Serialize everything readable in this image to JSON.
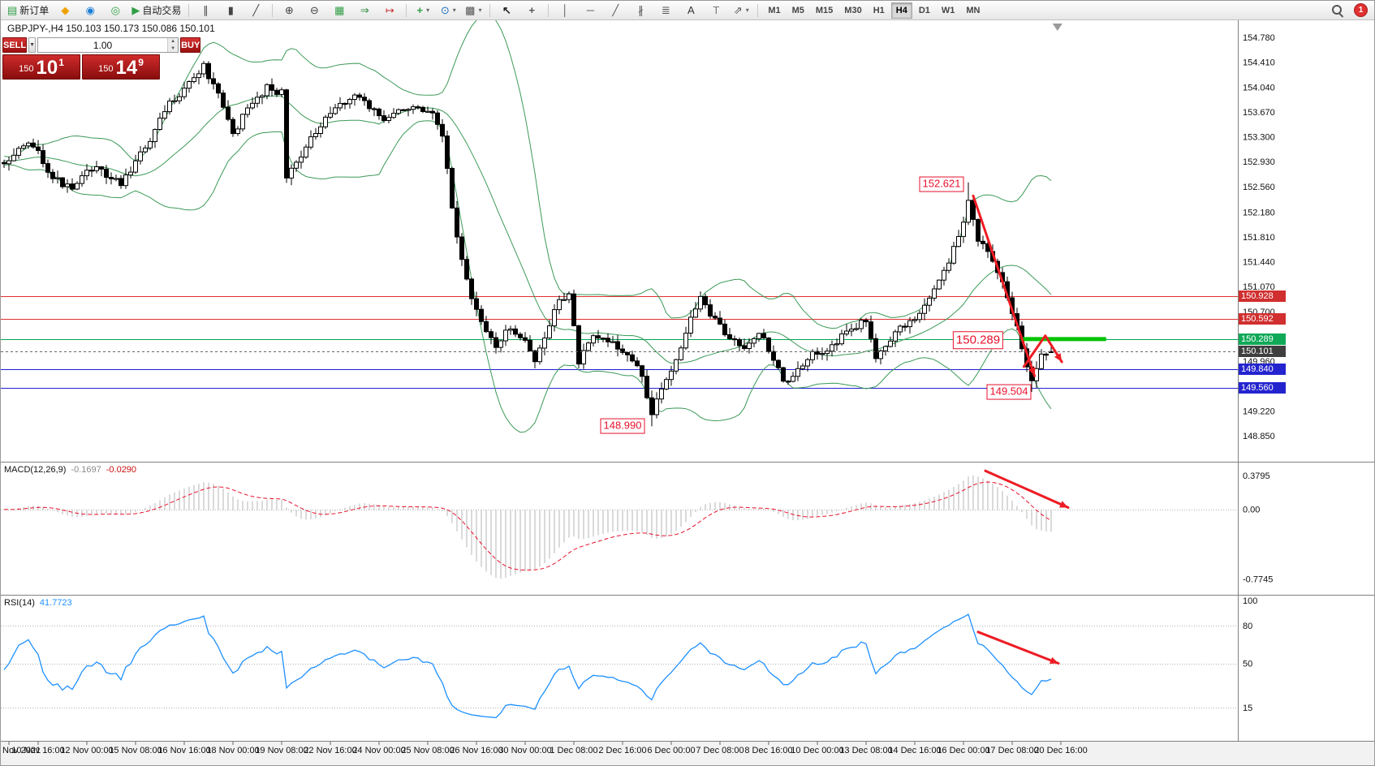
{
  "toolbar": {
    "groups": [
      {
        "items": [
          {
            "name": "new-order",
            "glyph": "▤",
            "color": "#2f9e44",
            "label": "新订单"
          },
          {
            "name": "profiles",
            "glyph": "◆",
            "color": "#f0a202"
          },
          {
            "name": "market-watch",
            "glyph": "◉",
            "color": "#1c7ed6"
          },
          {
            "name": "navigator",
            "glyph": "◎",
            "color": "#2f9e44"
          },
          {
            "name": "autotrading",
            "glyph": "▶",
            "color": "#2f9e44",
            "label": "自动交易"
          }
        ]
      },
      {
        "items": [
          {
            "name": "chart-bars",
            "glyph": "∥",
            "color": "#444"
          },
          {
            "name": "chart-candles",
            "glyph": "▮",
            "color": "#444"
          },
          {
            "name": "chart-line",
            "glyph": "╱",
            "color": "#444"
          }
        ]
      },
      {
        "items": [
          {
            "name": "zoom-in",
            "glyph": "⊕",
            "color": "#444"
          },
          {
            "name": "zoom-out",
            "glyph": "⊖",
            "color": "#444"
          },
          {
            "name": "tile-windows",
            "glyph": "▦",
            "color": "#2f9e44"
          },
          {
            "name": "auto-scroll",
            "glyph": "⇒",
            "color": "#2b8a3e"
          },
          {
            "name": "chart-shift",
            "glyph": "↦",
            "color": "#c92a2a"
          }
        ]
      },
      {
        "items": [
          {
            "name": "indicators",
            "glyph": "+",
            "color": "#2f9e44",
            "bold": true,
            "dropdown": true
          },
          {
            "name": "periods",
            "glyph": "⊙",
            "color": "#1971c2",
            "dropdown": true
          },
          {
            "name": "templates",
            "glyph": "▩",
            "color": "#555",
            "dropdown": true
          }
        ]
      },
      {
        "items": [
          {
            "name": "cursor",
            "glyph": "↖",
            "color": "#222",
            "bold": true
          },
          {
            "name": "crosshair",
            "glyph": "+",
            "color": "#555",
            "bold": true
          }
        ]
      },
      {
        "items": [
          {
            "name": "draw-vline",
            "glyph": "│",
            "color": "#555"
          },
          {
            "name": "draw-hline",
            "glyph": "─",
            "color": "#555"
          },
          {
            "name": "draw-trendline",
            "glyph": "╱",
            "color": "#555"
          },
          {
            "name": "draw-channel",
            "glyph": "∦",
            "color": "#555"
          },
          {
            "name": "draw-fibonacci",
            "glyph": "≣",
            "color": "#555"
          },
          {
            "name": "draw-text",
            "glyph": "A",
            "color": "#333"
          },
          {
            "name": "draw-label",
            "glyph": "T",
            "color": "#777"
          },
          {
            "name": "draw-arrows",
            "glyph": "⇗",
            "color": "#555",
            "dropdown": true
          }
        ]
      }
    ],
    "timeframes": {
      "items": [
        "M1",
        "M5",
        "M15",
        "M30",
        "H1",
        "H4",
        "D1",
        "W1",
        "MN"
      ],
      "active": "H4"
    },
    "notification_count": "1"
  },
  "chart": {
    "title": "GBPJPY-,H4 150.103 150.173 150.086 150.101",
    "trade_panel": {
      "sell_label": "SELL",
      "buy_label": "BUY",
      "lot": "1.00",
      "bid_prefix": "150",
      "bid_big": "10",
      "bid_sup": "1",
      "ask_prefix": "150",
      "ask_big": "14",
      "ask_sup": "9"
    },
    "price_axis_labels": [
      "154.780",
      "154.410",
      "154.040",
      "153.670",
      "153.300",
      "152.930",
      "152.560",
      "152.180",
      "151.810",
      "151.440",
      "151.070",
      "150.700",
      "149.960",
      "149.220",
      "148.850"
    ],
    "scale_boxes": [
      {
        "text": "150.928",
        "price": 150.928,
        "bg": "#d12f2f"
      },
      {
        "text": "150.592",
        "price": 150.592,
        "bg": "#d12f2f"
      },
      {
        "text": "150.289",
        "price": 150.289,
        "bg": "#0fa958"
      },
      {
        "text": "150.101",
        "price": 150.101,
        "bg": "#3f3f3f"
      },
      {
        "text": "149.840",
        "price": 149.84,
        "bg": "#2424cf"
      },
      {
        "text": "149.560",
        "price": 149.56,
        "bg": "#2424cf"
      }
    ],
    "hlines": [
      {
        "price": 150.928,
        "color": "#e03131"
      },
      {
        "price": 150.592,
        "color": "#e03131"
      },
      {
        "price": 150.289,
        "color": "#00a651"
      },
      {
        "price": 149.84,
        "color": "#1f1fd1"
      },
      {
        "price": 149.56,
        "color": "#1f1fd1"
      }
    ],
    "current_price": {
      "price": 150.101,
      "color": "#666"
    },
    "green_segment": {
      "i1": 208.7,
      "i2": 226.3,
      "price": 150.289,
      "color": "#00c300",
      "width": 5
    },
    "callouts": [
      {
        "text": "152.621",
        "i": 192.5,
        "price": 152.6,
        "size": 13
      },
      {
        "text": "150.289",
        "i": 200.0,
        "price": 150.27,
        "size": 15
      },
      {
        "text": "149.504",
        "i": 206.3,
        "price": 149.5,
        "size": 13
      },
      {
        "text": "148.990",
        "i": 127.0,
        "price": 149.0,
        "size": 13
      }
    ],
    "trend_arrows": [
      {
        "pts": [
          [
            199.0,
            152.42
          ],
          [
            211.6,
            149.74
          ]
        ]
      },
      {
        "pts": [
          [
            209.4,
            149.88
          ],
          [
            213.8,
            150.34
          ],
          [
            217.2,
            149.95
          ]
        ]
      }
    ],
    "arrow_color": "#ed1c24",
    "shift_marker_i": 216.3,
    "candles": {
      "count": 216,
      "anchors": [
        [
          0,
          152.95
        ],
        [
          6,
          153.2
        ],
        [
          10,
          152.7
        ],
        [
          14,
          152.5
        ],
        [
          18,
          152.85
        ],
        [
          24,
          152.6
        ],
        [
          30,
          153.25
        ],
        [
          34,
          153.8
        ],
        [
          38,
          154.1
        ],
        [
          41,
          154.35
        ],
        [
          44,
          153.9
        ],
        [
          47,
          153.35
        ],
        [
          50,
          153.7
        ],
        [
          54,
          154.05
        ],
        [
          57,
          153.95
        ],
        [
          58,
          152.7
        ],
        [
          61,
          153.05
        ],
        [
          65,
          153.45
        ],
        [
          69,
          153.8
        ],
        [
          73,
          153.9
        ],
        [
          78,
          153.55
        ],
        [
          83,
          153.75
        ],
        [
          88,
          153.6
        ],
        [
          90,
          153.3
        ],
        [
          92,
          152.25
        ],
        [
          94,
          151.45
        ],
        [
          96,
          150.9
        ],
        [
          98,
          150.5
        ],
        [
          101,
          150.2
        ],
        [
          104,
          150.45
        ],
        [
          107,
          150.3
        ],
        [
          109,
          149.95
        ],
        [
          111,
          150.3
        ],
        [
          114,
          150.9
        ],
        [
          116,
          150.95
        ],
        [
          118,
          149.95
        ],
        [
          121,
          150.3
        ],
        [
          125,
          150.25
        ],
        [
          128,
          150.05
        ],
        [
          131,
          149.75
        ],
        [
          133,
          149.15
        ],
        [
          135,
          149.55
        ],
        [
          138,
          150.0
        ],
        [
          141,
          150.6
        ],
        [
          143,
          150.9
        ],
        [
          146,
          150.55
        ],
        [
          149,
          150.3
        ],
        [
          152,
          150.2
        ],
        [
          155,
          150.4
        ],
        [
          158,
          150.0
        ],
        [
          160,
          149.65
        ],
        [
          163,
          149.8
        ],
        [
          166,
          150.05
        ],
        [
          170,
          150.2
        ],
        [
          174,
          150.45
        ],
        [
          177,
          150.55
        ],
        [
          179,
          150.05
        ],
        [
          182,
          150.3
        ],
        [
          185,
          150.5
        ],
        [
          188,
          150.65
        ],
        [
          191,
          151.05
        ],
        [
          194,
          151.45
        ],
        [
          197,
          152.0
        ],
        [
          198,
          152.35
        ],
        [
          200,
          151.8
        ],
        [
          202,
          151.55
        ],
        [
          205,
          151.1
        ],
        [
          207,
          150.7
        ],
        [
          209,
          150.2
        ],
        [
          211,
          149.65
        ],
        [
          213,
          150.1
        ],
        [
          215,
          150.101
        ]
      ],
      "overrides": [
        {
          "i": 133,
          "l": 148.99
        },
        {
          "i": 198,
          "h": 152.621
        },
        {
          "i": 211,
          "l": 149.504
        },
        {
          "i": 215,
          "o": 150.103,
          "h": 150.173,
          "l": 150.086,
          "c": 150.101
        }
      ]
    },
    "bollinger": {
      "period": 20,
      "deviation": 2,
      "color": "#3c9a57"
    }
  },
  "macd": {
    "name": "MACD(12,26,9)",
    "value_main": "-0.1697",
    "value_signal": "-0.0290",
    "axis_top": "0.3795",
    "axis_zero": "0.00",
    "axis_bottom": "-0.7745",
    "hist_color": "#b5b5b5",
    "signal_color": "#e8112d",
    "arrow": {
      "pts": [
        [
          201.5,
          0.43
        ],
        [
          218.5,
          0.02
        ]
      ]
    }
  },
  "rsi": {
    "name": "RSI(14)",
    "value": "41.7723",
    "line_color": "#1e90ff",
    "axis": [
      {
        "label": "100",
        "v": 100
      },
      {
        "label": "80",
        "v": 80
      },
      {
        "label": "50",
        "v": 50
      },
      {
        "label": "15",
        "v": 15
      }
    ],
    "levels": [
      80,
      50,
      15
    ],
    "arrow": {
      "pts": [
        [
          200,
          75
        ],
        [
          216.5,
          50
        ]
      ]
    }
  },
  "time_axis": {
    "labels": [
      {
        "text": "Nov 2021",
        "i": 1,
        "align": "start"
      },
      {
        "text": "10 Nov 16:00",
        "i": 7
      },
      {
        "text": "12 Nov 00:00",
        "i": 17
      },
      {
        "text": "15 Nov 08:00",
        "i": 27
      },
      {
        "text": "16 Nov 16:00",
        "i": 37
      },
      {
        "text": "18 Nov 00:00",
        "i": 47
      },
      {
        "text": "19 Nov 08:00",
        "i": 57
      },
      {
        "text": "22 Nov 16:00",
        "i": 67
      },
      {
        "text": "24 Nov 00:00",
        "i": 77
      },
      {
        "text": "25 Nov 08:00",
        "i": 87
      },
      {
        "text": "26 Nov 16:00",
        "i": 97
      },
      {
        "text": "30 Nov 00:00",
        "i": 107
      },
      {
        "text": "1 Dec 08:00",
        "i": 117
      },
      {
        "text": "2 Dec 16:00",
        "i": 127
      },
      {
        "text": "6 Dec 00:00",
        "i": 137
      },
      {
        "text": "7 Dec 08:00",
        "i": 147
      },
      {
        "text": "8 Dec 16:00",
        "i": 157
      },
      {
        "text": "10 Dec 00:00",
        "i": 167
      },
      {
        "text": "13 Dec 08:00",
        "i": 177
      },
      {
        "text": "14 Dec 16:00",
        "i": 187
      },
      {
        "text": "16 Dec 00:00",
        "i": 197
      },
      {
        "text": "17 Dec 08:00",
        "i": 207
      },
      {
        "text": "20 Dec 16:00",
        "i": 217
      }
    ]
  }
}
